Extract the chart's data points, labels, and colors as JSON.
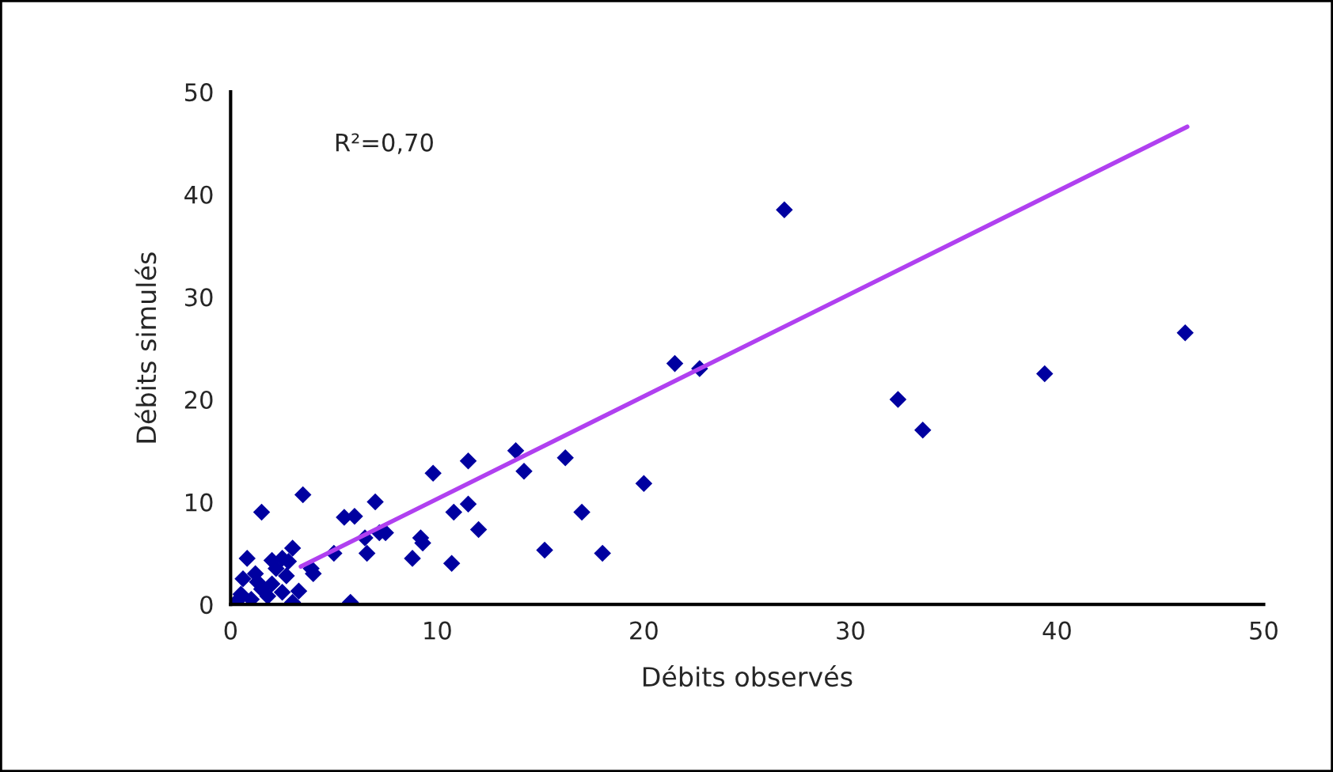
{
  "chart_data": {
    "type": "scatter",
    "xlabel": "Débits observés",
    "ylabel": "Débits simulés",
    "annotations": [
      "R²=0,70"
    ],
    "xlim": [
      0,
      50
    ],
    "xticks": [
      0,
      10,
      20,
      30,
      40,
      50
    ],
    "ylim": [
      0,
      50
    ],
    "yticks": [
      0,
      10,
      20,
      30,
      40,
      50
    ],
    "grid": false,
    "series": [
      {
        "marker": "diamond",
        "color": "#0000a0",
        "x": [
          26.8,
          21.5,
          22.7,
          32.3,
          33.5,
          39.4,
          46.2,
          20,
          16.2,
          14.2,
          13.8,
          11.5,
          9.8,
          17,
          18,
          15.2,
          12,
          11.5,
          10.8,
          10.7,
          9.2,
          9.3,
          8.8,
          7,
          7.2,
          6.6,
          6,
          5.5,
          5,
          3.5,
          1.5,
          3,
          2.8,
          3.9,
          5.8,
          2.5,
          0.8,
          1.2,
          2,
          0.5,
          1,
          1.5,
          2.2,
          0.3,
          1.8,
          2.5,
          0.6,
          3.3,
          3,
          1.3,
          2.7,
          4,
          6.5,
          7.5,
          2
        ],
        "values": [
          38.5,
          23.5,
          23,
          20,
          17,
          22.5,
          26.5,
          11.8,
          14.3,
          13,
          15,
          14,
          12.8,
          9,
          5,
          5.3,
          7.3,
          9.8,
          9,
          4,
          6.5,
          6,
          4.5,
          10,
          7,
          5,
          8.6,
          8.5,
          5,
          10.7,
          9,
          5.5,
          4.2,
          3.5,
          0.2,
          4.5,
          4.5,
          3,
          2,
          1,
          0.5,
          1.5,
          3.5,
          0.3,
          0.8,
          1.2,
          2.5,
          1.3,
          0.2,
          2.2,
          2.8,
          3,
          6.5,
          7,
          4.3
        ]
      },
      {
        "type": "line",
        "color": "#b040f0",
        "x": [
          3.4,
          46.3
        ],
        "values": [
          3.7,
          46.6
        ]
      }
    ]
  }
}
